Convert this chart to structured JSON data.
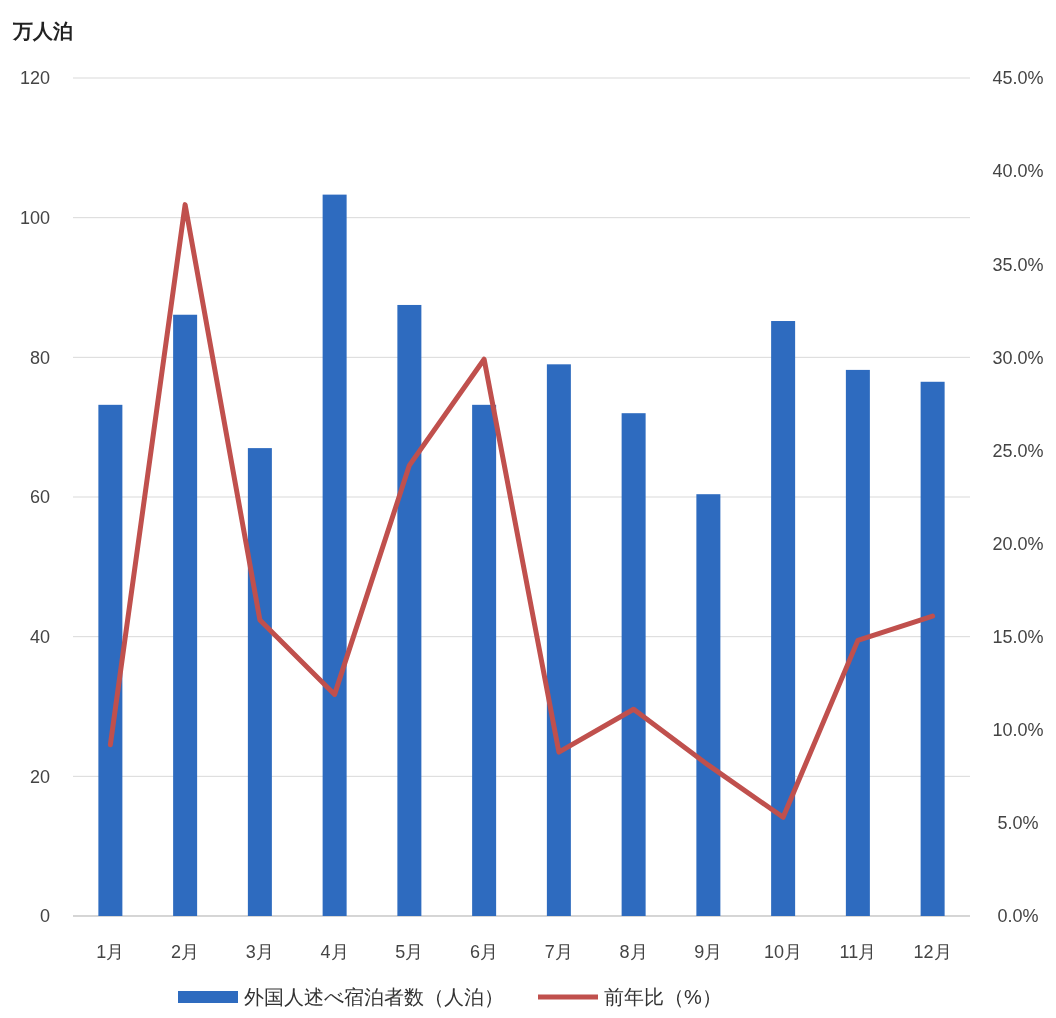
{
  "chart_data": {
    "type": "bar",
    "ylabel": "万人泊",
    "categories": [
      "1月",
      "2月",
      "3月",
      "4月",
      "5月",
      "6月",
      "7月",
      "8月",
      "9月",
      "10月",
      "11月",
      "12月"
    ],
    "series": [
      {
        "name": "外国人述べ宿泊者数（人泊）",
        "color": "#2e6bbf",
        "values": [
          73.2,
          86.1,
          67.0,
          103.3,
          87.5,
          73.2,
          79.0,
          72.0,
          60.4,
          85.2,
          78.2,
          76.5
        ]
      },
      {
        "name": "前年比（%）",
        "type": "line",
        "axis": "y2",
        "color": "#c0504d",
        "values": [
          9.2,
          38.2,
          15.9,
          11.9,
          24.2,
          29.9,
          8.8,
          11.1,
          8.1,
          5.3,
          14.8,
          16.1
        ]
      }
    ],
    "ylim": [
      0,
      120
    ],
    "yticks": [
      0,
      20,
      40,
      60,
      80,
      100,
      120
    ],
    "y2lim": [
      0,
      45
    ],
    "y2ticks": [
      {
        "value": 0,
        "label": "0.0%"
      },
      {
        "value": 5,
        "label": "5.0%"
      },
      {
        "value": 10,
        "label": "10.0%"
      },
      {
        "value": 15,
        "label": "15.0%"
      },
      {
        "value": 20,
        "label": "20.0%"
      },
      {
        "value": 25,
        "label": "25.0%"
      },
      {
        "value": 30,
        "label": "30.0%"
      },
      {
        "value": 35,
        "label": "35.0%"
      },
      {
        "value": 40,
        "label": "40.0%"
      },
      {
        "value": 45,
        "label": "45.0%"
      }
    ],
    "grid": "y",
    "legend": "bottom",
    "marker": "none",
    "line_style": "solid"
  }
}
